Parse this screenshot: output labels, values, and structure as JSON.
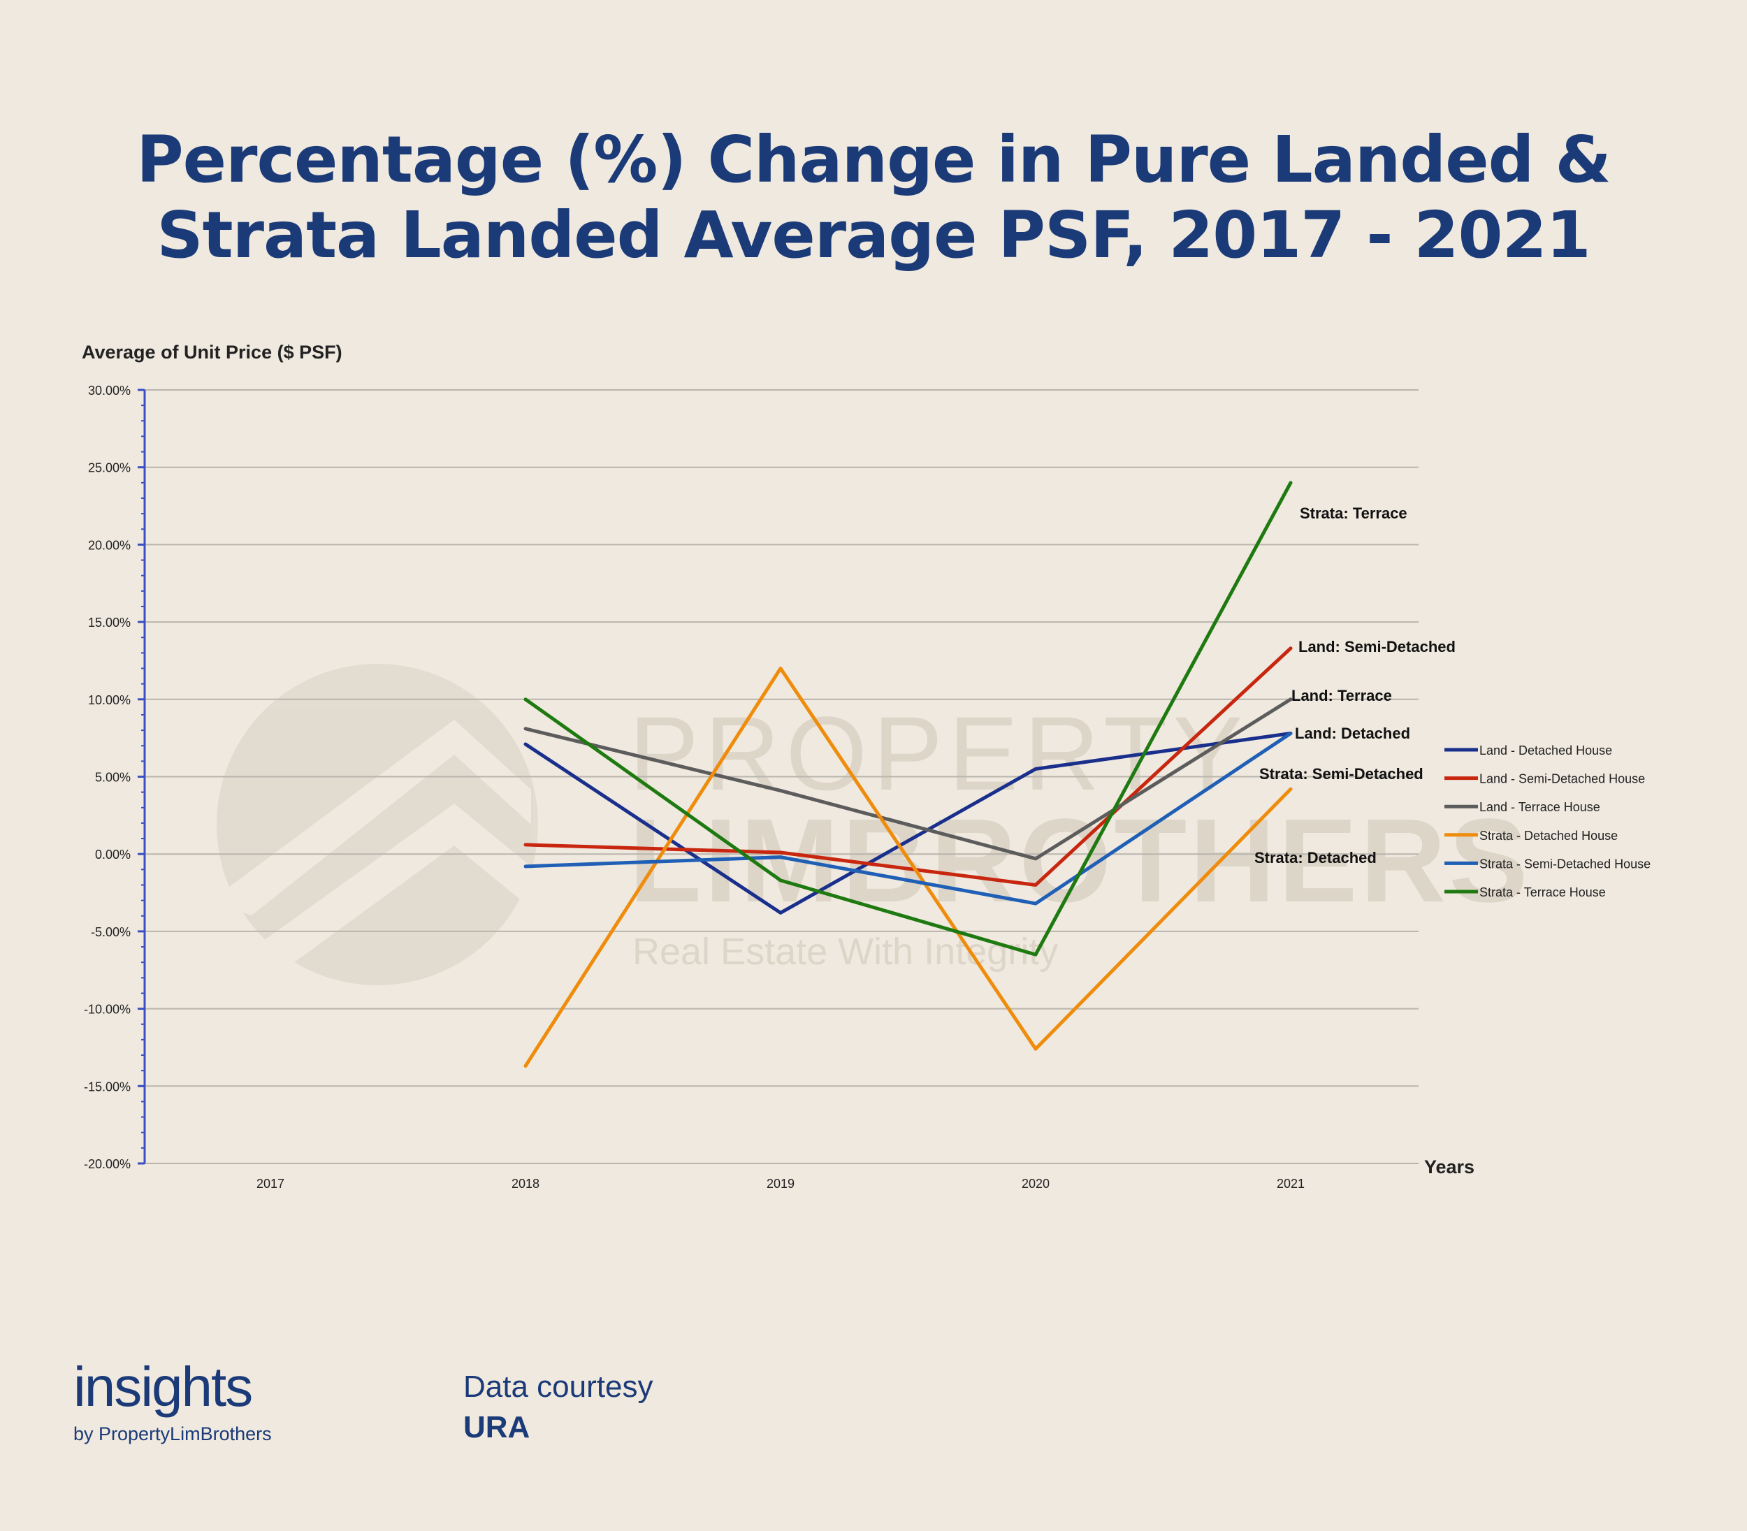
{
  "title": {
    "line1": "Percentage (%) Change in Pure Landed &",
    "line2": "Strata Landed Average PSF, 2017 - 2021"
  },
  "watermark": {
    "line1": "PROPERTY",
    "line2": "LIMBROTHERS",
    "tagline": "Real Estate With Integrity"
  },
  "footer": {
    "brand": "insights",
    "brand_sub": "by PropertyLimBrothers",
    "credit_label": "Data courtesy",
    "credit_source": "URA"
  },
  "chart_data": {
    "type": "line",
    "ylabel": "Average of Unit Price ($ PSF)",
    "xlabel": "Years",
    "categories": [
      "2017",
      "2018",
      "2019",
      "2020",
      "2021"
    ],
    "ylim": [
      -20,
      30
    ],
    "yticks": [
      30,
      25,
      20,
      15,
      10,
      5,
      0,
      -5,
      -10,
      -15,
      -20
    ],
    "ytick_labels": [
      "30.00%",
      "25.00%",
      "20.00%",
      "15.00%",
      "10.00%",
      "5.00%",
      "0.00%",
      "-5.00%",
      "-10.00%",
      "-15.00%",
      "-20.00%"
    ],
    "grid": true,
    "legend_position": "right",
    "series": [
      {
        "name": "Land - Detached House",
        "color": "#1a2f8c",
        "values": [
          null,
          7.1,
          -3.8,
          5.5,
          7.8
        ],
        "annotation": "Land: Detached"
      },
      {
        "name": "Land - Semi-Detached House",
        "color": "#c8260f",
        "values": [
          null,
          0.6,
          0.1,
          -2.0,
          13.3
        ],
        "annotation": "Land: Semi-Detached"
      },
      {
        "name": "Land - Terrace House",
        "color": "#5c5c5c",
        "values": [
          null,
          8.1,
          4.1,
          -0.3,
          10.0
        ],
        "annotation": "Land: Terrace"
      },
      {
        "name": "Strata - Detached House",
        "color": "#ef8c0c",
        "values": [
          null,
          -13.7,
          12.0,
          -12.6,
          4.2
        ],
        "annotation": "Strata: Detached"
      },
      {
        "name": "Strata - Semi-Detached House",
        "color": "#1f5fb5",
        "values": [
          null,
          -0.8,
          -0.2,
          -3.2,
          7.8
        ],
        "annotation": "Strata: Semi-Detached"
      },
      {
        "name": "Strata - Terrace House",
        "color": "#1e7a10",
        "values": [
          null,
          10.0,
          -1.7,
          -6.5,
          24.0
        ],
        "annotation": "Strata: Terrace"
      }
    ]
  }
}
